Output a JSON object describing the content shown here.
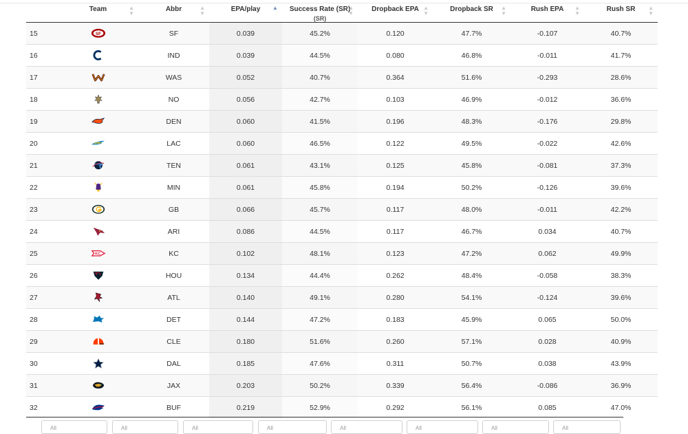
{
  "columns": [
    {
      "label": "",
      "sort": ""
    },
    {
      "label": "Team",
      "sort": "both"
    },
    {
      "label": "Abbr",
      "sort": "both"
    },
    {
      "label": "EPA/play",
      "sort": "asc"
    },
    {
      "label": "Success Rate (SR)",
      "sub": "(SR)",
      "sort": "both"
    },
    {
      "label": "Dropback EPA",
      "sort": "both"
    },
    {
      "label": "Dropback SR",
      "sort": "both"
    },
    {
      "label": "Rush EPA",
      "sort": "both"
    },
    {
      "label": "Rush SR",
      "sort": "both"
    }
  ],
  "rows": [
    {
      "rank": "15",
      "team_logo": "49ers-logo",
      "abbr": "SF",
      "epa": "0.039",
      "sr": "45.2%",
      "db_epa": "0.120",
      "db_sr": "47.7%",
      "rush_epa": "-0.107",
      "rush_sr": "40.7%"
    },
    {
      "rank": "16",
      "team_logo": "colts-logo",
      "abbr": "IND",
      "epa": "0.039",
      "sr": "44.5%",
      "db_epa": "0.080",
      "db_sr": "46.8%",
      "rush_epa": "-0.011",
      "rush_sr": "41.7%"
    },
    {
      "rank": "17",
      "team_logo": "commanders-logo",
      "abbr": "WAS",
      "epa": "0.052",
      "sr": "40.7%",
      "db_epa": "0.364",
      "db_sr": "51.6%",
      "rush_epa": "-0.293",
      "rush_sr": "28.6%"
    },
    {
      "rank": "18",
      "team_logo": "saints-logo",
      "abbr": "NO",
      "epa": "0.056",
      "sr": "42.7%",
      "db_epa": "0.103",
      "db_sr": "46.9%",
      "rush_epa": "-0.012",
      "rush_sr": "36.6%"
    },
    {
      "rank": "19",
      "team_logo": "broncos-logo",
      "abbr": "DEN",
      "epa": "0.060",
      "sr": "41.5%",
      "db_epa": "0.196",
      "db_sr": "48.3%",
      "rush_epa": "-0.176",
      "rush_sr": "29.8%"
    },
    {
      "rank": "20",
      "team_logo": "chargers-logo",
      "abbr": "LAC",
      "epa": "0.060",
      "sr": "46.5%",
      "db_epa": "0.122",
      "db_sr": "49.5%",
      "rush_epa": "-0.022",
      "rush_sr": "42.6%"
    },
    {
      "rank": "21",
      "team_logo": "titans-logo",
      "abbr": "TEN",
      "epa": "0.061",
      "sr": "43.1%",
      "db_epa": "0.125",
      "db_sr": "45.8%",
      "rush_epa": "-0.081",
      "rush_sr": "37.3%"
    },
    {
      "rank": "22",
      "team_logo": "vikings-logo",
      "abbr": "MIN",
      "epa": "0.061",
      "sr": "45.8%",
      "db_epa": "0.194",
      "db_sr": "50.2%",
      "rush_epa": "-0.126",
      "rush_sr": "39.6%"
    },
    {
      "rank": "23",
      "team_logo": "packers-logo",
      "abbr": "GB",
      "epa": "0.066",
      "sr": "45.7%",
      "db_epa": "0.117",
      "db_sr": "48.0%",
      "rush_epa": "-0.011",
      "rush_sr": "42.2%"
    },
    {
      "rank": "24",
      "team_logo": "cardinals-logo",
      "abbr": "ARI",
      "epa": "0.086",
      "sr": "44.5%",
      "db_epa": "0.117",
      "db_sr": "46.7%",
      "rush_epa": "0.034",
      "rush_sr": "40.7%"
    },
    {
      "rank": "25",
      "team_logo": "chiefs-logo",
      "abbr": "KC",
      "epa": "0.102",
      "sr": "48.1%",
      "db_epa": "0.123",
      "db_sr": "47.2%",
      "rush_epa": "0.062",
      "rush_sr": "49.9%"
    },
    {
      "rank": "26",
      "team_logo": "texans-logo",
      "abbr": "HOU",
      "epa": "0.134",
      "sr": "44.4%",
      "db_epa": "0.262",
      "db_sr": "48.4%",
      "rush_epa": "-0.058",
      "rush_sr": "38.3%"
    },
    {
      "rank": "27",
      "team_logo": "falcons-logo",
      "abbr": "ATL",
      "epa": "0.140",
      "sr": "49.1%",
      "db_epa": "0.280",
      "db_sr": "54.1%",
      "rush_epa": "-0.124",
      "rush_sr": "39.6%"
    },
    {
      "rank": "28",
      "team_logo": "lions-logo",
      "abbr": "DET",
      "epa": "0.144",
      "sr": "47.2%",
      "db_epa": "0.183",
      "db_sr": "45.9%",
      "rush_epa": "0.065",
      "rush_sr": "50.0%"
    },
    {
      "rank": "29",
      "team_logo": "browns-logo",
      "abbr": "CLE",
      "epa": "0.180",
      "sr": "51.6%",
      "db_epa": "0.260",
      "db_sr": "57.1%",
      "rush_epa": "0.028",
      "rush_sr": "40.9%"
    },
    {
      "rank": "30",
      "team_logo": "cowboys-logo",
      "abbr": "DAL",
      "epa": "0.185",
      "sr": "47.6%",
      "db_epa": "0.311",
      "db_sr": "50.7%",
      "rush_epa": "0.038",
      "rush_sr": "43.9%"
    },
    {
      "rank": "31",
      "team_logo": "jaguars-logo",
      "abbr": "JAX",
      "epa": "0.203",
      "sr": "50.2%",
      "db_epa": "0.339",
      "db_sr": "56.4%",
      "rush_epa": "-0.086",
      "rush_sr": "36.9%"
    },
    {
      "rank": "32",
      "team_logo": "bills-logo",
      "abbr": "BUF",
      "epa": "0.219",
      "sr": "52.9%",
      "db_epa": "0.292",
      "db_sr": "56.1%",
      "rush_epa": "0.085",
      "rush_sr": "47.0%"
    }
  ],
  "filters": [
    "All",
    "All",
    "All",
    "All",
    "All",
    "All",
    "All",
    "All"
  ],
  "colors": {
    "49ers": "#aa0000",
    "colts": "#002c5f",
    "commanders": "#5a1414",
    "commanders_gold": "#ffb612",
    "saints": "#9f8958",
    "broncos": "#fb4f14",
    "broncos_navy": "#002244",
    "chargers": "#0080c6",
    "chargers_gold": "#ffc20e",
    "titans": "#0c2340",
    "titans_blue": "#4b92db",
    "vikings": "#4f2683",
    "vikings_gold": "#ffc62f",
    "packers": "#203731",
    "packers_gold": "#ffb612",
    "cardinals": "#97233f",
    "chiefs": "#e31837",
    "texans": "#03202f",
    "texans_red": "#a71930",
    "falcons": "#a71930",
    "lions": "#0076b6",
    "browns": "#ff3c00",
    "browns_brown": "#311d00",
    "cowboys": "#041e42",
    "jaguars": "#006778",
    "jaguars_gold": "#d7a22a",
    "bills": "#00338d",
    "bills_red": "#c60c30"
  }
}
